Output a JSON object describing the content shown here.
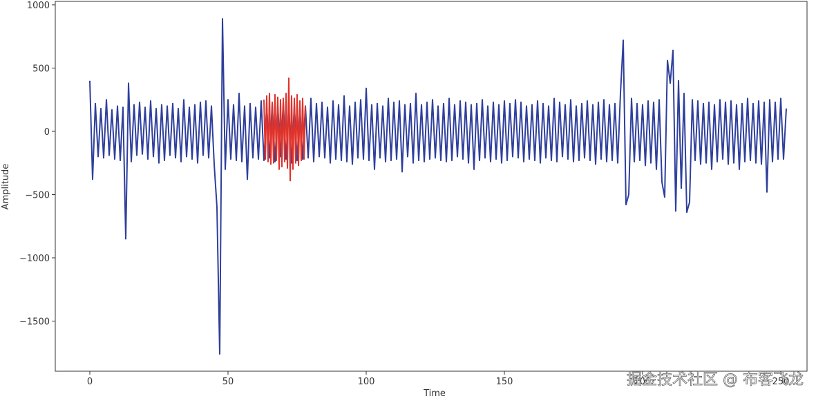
{
  "chart_data": {
    "type": "line",
    "xlabel": "Time",
    "ylabel": "Amplitude",
    "xlim": [
      -12.5,
      259.5
    ],
    "xticks": [
      0,
      50,
      100,
      150,
      200,
      250
    ],
    "ylim": [
      -1896,
      1027
    ],
    "yticks": [
      {
        "value": -1500,
        "label": "−1500"
      },
      {
        "value": -1000,
        "label": "−1000"
      },
      {
        "value": -500,
        "label": "−500"
      },
      0,
      500,
      1000
    ],
    "grid": false,
    "annotation": "掘金技术社区 @ 布客飞龙",
    "series": [
      {
        "color": "#2e3f9c",
        "x": [
          0,
          1,
          2,
          3,
          4,
          5,
          6,
          7,
          8,
          9,
          10,
          11,
          12,
          13,
          14,
          15,
          16,
          17,
          18,
          19,
          20,
          21,
          22,
          23,
          24,
          25,
          26,
          27,
          28,
          29,
          30,
          31,
          32,
          33,
          34,
          35,
          36,
          37,
          38,
          39,
          40,
          41,
          42,
          43,
          44,
          45,
          46,
          47,
          48,
          49,
          50,
          51,
          52,
          53,
          54,
          55,
          56,
          57,
          58,
          59,
          60,
          61,
          62,
          63,
          64,
          65,
          66,
          67,
          68,
          69,
          70,
          71,
          72,
          73,
          74,
          75,
          76,
          77,
          78,
          79,
          80,
          81,
          82,
          83,
          84,
          85,
          86,
          87,
          88,
          89,
          90,
          91,
          92,
          93,
          94,
          95,
          96,
          97,
          98,
          99,
          100,
          101,
          102,
          103,
          104,
          105,
          106,
          107,
          108,
          109,
          110,
          111,
          112,
          113,
          114,
          115,
          116,
          117,
          118,
          119,
          120,
          121,
          122,
          123,
          124,
          125,
          126,
          127,
          128,
          129,
          130,
          131,
          132,
          133,
          134,
          135,
          136,
          137,
          138,
          139,
          140,
          141,
          142,
          143,
          144,
          145,
          146,
          147,
          148,
          149,
          150,
          151,
          152,
          153,
          154,
          155,
          156,
          157,
          158,
          159,
          160,
          161,
          162,
          163,
          164,
          165,
          166,
          167,
          168,
          169,
          170,
          171,
          172,
          173,
          174,
          175,
          176,
          177,
          178,
          179,
          180,
          181,
          182,
          183,
          184,
          185,
          186,
          187,
          188,
          189,
          190,
          191,
          192,
          193,
          194,
          195,
          196,
          197,
          198,
          199,
          200,
          201,
          202,
          203,
          204,
          205,
          206,
          207,
          208,
          209,
          210,
          211,
          212,
          213,
          214,
          215,
          216,
          217,
          218,
          219,
          220,
          221,
          222,
          223,
          224,
          225,
          226,
          227,
          228,
          229,
          230,
          231,
          232,
          233,
          234,
          235,
          236,
          237,
          238,
          239,
          240,
          241,
          242,
          243,
          244,
          245,
          246,
          247,
          248,
          249,
          250,
          251,
          252
        ],
        "values": [
          400,
          -380,
          220,
          -200,
          180,
          -210,
          250,
          -190,
          170,
          -220,
          200,
          -230,
          190,
          -850,
          380,
          -240,
          210,
          -190,
          230,
          -180,
          190,
          -220,
          240,
          -200,
          180,
          -250,
          210,
          -230,
          200,
          -190,
          220,
          -210,
          180,
          -240,
          250,
          -200,
          190,
          -220,
          210,
          -250,
          230,
          -190,
          240,
          -210,
          200,
          -260,
          -600,
          -1760,
          890,
          -300,
          250,
          -220,
          210,
          -230,
          300,
          -240,
          200,
          -380,
          220,
          -210,
          190,
          -220,
          240,
          -230,
          200,
          -210,
          220,
          -240,
          210,
          -200,
          230,
          -220,
          200,
          -250,
          210,
          -230,
          190,
          -220,
          200,
          -210,
          260,
          -240,
          220,
          -200,
          230,
          -210,
          190,
          -250,
          240,
          -220,
          210,
          -230,
          280,
          -240,
          200,
          -260,
          230,
          -210,
          250,
          -220,
          340,
          -230,
          210,
          -300,
          220,
          -210,
          200,
          -240,
          260,
          -230,
          230,
          -220,
          240,
          -320,
          210,
          -200,
          220,
          -250,
          300,
          -230,
          210,
          -240,
          230,
          -220,
          250,
          -210,
          200,
          -230,
          220,
          -240,
          260,
          -230,
          210,
          -200,
          240,
          -220,
          230,
          -250,
          210,
          -300,
          220,
          -230,
          250,
          -210,
          200,
          -240,
          230,
          -220,
          210,
          -250,
          240,
          -230,
          220,
          -200,
          250,
          -210,
          230,
          -240,
          200,
          -220,
          210,
          -230,
          240,
          -250,
          220,
          -210,
          200,
          -230,
          260,
          -240,
          230,
          -200,
          210,
          -220,
          250,
          -240,
          200,
          -230,
          220,
          -210,
          240,
          -230,
          210,
          -260,
          230,
          -220,
          250,
          -240,
          210,
          -230,
          220,
          -250,
          300,
          720,
          -580,
          -500,
          260,
          -240,
          220,
          -230,
          210,
          -270,
          240,
          -250,
          230,
          -300,
          250,
          -400,
          -520,
          560,
          380,
          640,
          -630,
          400,
          -450,
          300,
          -640,
          -560,
          250,
          -230,
          240,
          -260,
          220,
          -250,
          230,
          -300,
          210,
          -240,
          250,
          -220,
          230,
          -260,
          240,
          -250,
          210,
          -300,
          220,
          -240,
          260,
          -230,
          220,
          -250,
          240,
          -260,
          230,
          -480,
          250,
          -240,
          230,
          -220,
          260,
          -220,
          180
        ]
      },
      {
        "color": "#e0332b",
        "x": [
          63,
          63.5,
          64,
          64.5,
          65,
          65.5,
          66,
          66.5,
          67,
          67.5,
          68,
          68.5,
          69,
          69.5,
          70,
          70.5,
          71,
          71.5,
          72,
          72.5,
          73,
          73.5,
          74,
          74.5,
          75,
          75.5,
          76,
          76.5,
          77,
          77.5,
          78
        ],
        "values": [
          250,
          -220,
          280,
          -240,
          300,
          -260,
          230,
          -250,
          290,
          -230,
          270,
          -300,
          250,
          -280,
          260,
          -240,
          300,
          -290,
          420,
          -390,
          280,
          -300,
          260,
          -250,
          290,
          -270,
          240,
          -230,
          260,
          -220,
          200
        ]
      }
    ]
  }
}
